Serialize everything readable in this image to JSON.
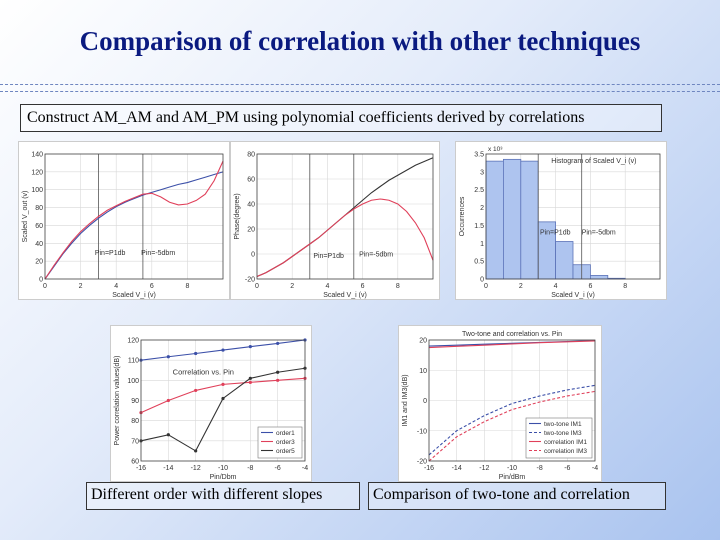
{
  "slide": {
    "title": "Comparison of correlation with other techniques",
    "subtitle": "Construct AM_AM and AM_PM using polynomial coefficients derived by correlations",
    "caption_left": "Different order with different slopes",
    "caption_right": "Comparison of two-tone and correlation"
  },
  "colors": {
    "blue": "#3b4fa8",
    "red": "#e0405a",
    "black": "#333333",
    "grid": "#d8d8d8",
    "hist": "#aec4ef"
  },
  "chart_data": [
    {
      "id": "amam",
      "type": "line",
      "xlabel": "Scaled V_i (v)",
      "ylabel": "Scaled V_out (v)",
      "xlim": [
        0,
        10
      ],
      "ylim": [
        0,
        140
      ],
      "xticks": [
        0,
        2,
        4,
        6,
        8
      ],
      "yticks": [
        0,
        20,
        40,
        60,
        80,
        100,
        120,
        140
      ],
      "vlines": [
        3.0,
        5.5
      ],
      "annotations": [
        {
          "text": "Pin=P1db",
          "x": 2.8,
          "y": 27
        },
        {
          "text": "Pin=-5dbm",
          "x": 5.4,
          "y": 27
        }
      ],
      "series": [
        {
          "color": "blue",
          "x": [
            0,
            0.5,
            1,
            1.5,
            2,
            2.5,
            3,
            3.5,
            4,
            4.5,
            5,
            5.5,
            6,
            6.5,
            7,
            7.5,
            8,
            8.5,
            9,
            9.5,
            10
          ],
          "y": [
            0,
            14,
            28,
            40,
            51,
            60,
            68,
            75,
            81,
            86,
            90,
            94,
            97,
            100,
            103,
            106,
            108,
            111,
            114,
            117,
            120
          ]
        },
        {
          "color": "red",
          "x": [
            0,
            0.5,
            1,
            1.5,
            2,
            2.5,
            3,
            3.5,
            4,
            4.5,
            5,
            5.5,
            6,
            6.5,
            7,
            7.5,
            8,
            8.5,
            9,
            9.5,
            10
          ],
          "y": [
            0,
            15,
            29,
            42,
            53,
            62,
            70,
            77,
            82,
            87,
            91,
            95,
            96,
            92,
            86,
            83,
            84,
            88,
            95,
            110,
            132
          ]
        }
      ]
    },
    {
      "id": "ampm",
      "type": "line",
      "xlabel": "Scaled V_i (v)",
      "ylabel": "Phase(degree)",
      "xlim": [
        0,
        10
      ],
      "ylim": [
        -20,
        80
      ],
      "xticks": [
        0,
        2,
        4,
        6,
        8
      ],
      "yticks": [
        -20,
        0,
        20,
        40,
        60,
        80
      ],
      "vlines": [
        3.0,
        5.5
      ],
      "annotations": [
        {
          "text": "Pin=P1db",
          "x": 3.2,
          "y": -3
        },
        {
          "text": "Pin=-5dbm",
          "x": 5.8,
          "y": -2
        }
      ],
      "series": [
        {
          "color": "black",
          "x": [
            0,
            0.5,
            1,
            1.5,
            2,
            2.5,
            3,
            3.5,
            4,
            4.5,
            5,
            5.5,
            6,
            6.5,
            7,
            7.5,
            8,
            8.5,
            9,
            9.5,
            10
          ],
          "y": [
            -18,
            -15,
            -11,
            -7,
            -2,
            3,
            8,
            13,
            19,
            25,
            31,
            37,
            43,
            49,
            54,
            59,
            63,
            67,
            71,
            74,
            77
          ]
        },
        {
          "color": "red",
          "x": [
            0,
            0.5,
            1,
            1.5,
            2,
            2.5,
            3,
            3.5,
            4,
            4.5,
            5,
            5.5,
            6,
            6.5,
            7,
            7.5,
            8,
            8.5,
            9,
            9.5,
            10
          ],
          "y": [
            -18,
            -15,
            -11,
            -7,
            -2,
            3,
            8,
            13,
            19,
            25,
            31,
            36,
            40,
            43,
            44,
            43,
            40,
            34,
            25,
            13,
            -5
          ]
        }
      ]
    },
    {
      "id": "histogram",
      "type": "bar",
      "title": "Histogram of Scaled V_i (v)",
      "xlabel": "Scaled V_i (v)",
      "ylabel": "Occurrences",
      "exponent": "x 10³",
      "xlim": [
        0,
        10
      ],
      "ylim": [
        0,
        3.5
      ],
      "xticks": [
        0,
        2,
        4,
        6,
        8
      ],
      "yticks": [
        0,
        0.5,
        1,
        1.5,
        2,
        2.5,
        3,
        3.5
      ],
      "vlines": [
        3.0,
        5.5
      ],
      "annotations": [
        {
          "text": "Pin=P1db",
          "x": 3.1,
          "y": 1.25
        },
        {
          "text": "Pin=-5dbm",
          "x": 5.5,
          "y": 1.25
        }
      ],
      "bin_edges": [
        0,
        1,
        2,
        3,
        4,
        5,
        6,
        7,
        8,
        9,
        10
      ],
      "values": [
        3.3,
        3.35,
        3.3,
        1.6,
        1.05,
        0.4,
        0.1,
        0.02,
        0,
        0
      ]
    },
    {
      "id": "orders",
      "type": "line",
      "title": "Correlation vs. Pin",
      "xlabel": "Pin/Dbm",
      "ylabel": "Power correlation values(dB)",
      "xlim": [
        -16,
        -4
      ],
      "ylim": [
        60,
        120
      ],
      "xticks": [
        -16,
        -14,
        -12,
        -10,
        -8,
        -6,
        -4
      ],
      "yticks": [
        60,
        70,
        80,
        90,
        100,
        110,
        120
      ],
      "legend": "bottom-right",
      "series": [
        {
          "name": "order1",
          "color": "blue",
          "x": [
            -16,
            -14,
            -12,
            -10,
            -8,
            -6,
            -4
          ],
          "y": [
            110,
            111.7,
            113.3,
            115,
            116.7,
            118.3,
            120
          ]
        },
        {
          "name": "order3",
          "color": "red",
          "x": [
            -16,
            -14,
            -12,
            -10,
            -8,
            -6,
            -4
          ],
          "y": [
            84,
            90,
            95,
            98,
            99,
            100,
            101
          ]
        },
        {
          "name": "order5",
          "color": "black",
          "x": [
            -16,
            -14,
            -12,
            -10,
            -8,
            -6,
            -4
          ],
          "y": [
            70,
            73,
            65,
            91,
            101,
            104,
            106
          ]
        }
      ]
    },
    {
      "id": "twotone",
      "type": "line",
      "title": "Two-tone and correlation vs. Pin",
      "xlabel": "Pin/dBm",
      "ylabel": "IM1 and IM3(dB)",
      "xlim": [
        -16,
        -4
      ],
      "ylim": [
        -20,
        20
      ],
      "xticks": [
        -16,
        -14,
        -12,
        -10,
        -8,
        -6,
        -4
      ],
      "yticks": [
        -20,
        -10,
        0,
        10,
        20
      ],
      "legend": "bottom-right",
      "series": [
        {
          "name": "two-tone IM1",
          "color": "blue",
          "dash": "",
          "x": [
            -16,
            -14,
            -12,
            -10,
            -8,
            -6,
            -4
          ],
          "y": [
            18,
            18.3,
            18.6,
            18.9,
            19.2,
            19.5,
            19.8
          ]
        },
        {
          "name": "two-tone IM3",
          "color": "blue",
          "dash": "3,2",
          "x": [
            -16,
            -14,
            -12,
            -10,
            -8,
            -6,
            -4
          ],
          "y": [
            -18,
            -10,
            -5,
            -1,
            1.5,
            3.5,
            5
          ]
        },
        {
          "name": "correlation IM1",
          "color": "red",
          "dash": "",
          "x": [
            -16,
            -14,
            -12,
            -10,
            -8,
            -6,
            -4
          ],
          "y": [
            17.5,
            17.9,
            18.3,
            18.7,
            19.1,
            19.4,
            19.7
          ]
        },
        {
          "name": "correlation IM3",
          "color": "red",
          "dash": "3,2",
          "x": [
            -16,
            -14,
            -12,
            -10,
            -8,
            -6,
            -4
          ],
          "y": [
            -20,
            -12,
            -7,
            -3,
            -0.5,
            1.5,
            3
          ]
        }
      ]
    }
  ]
}
